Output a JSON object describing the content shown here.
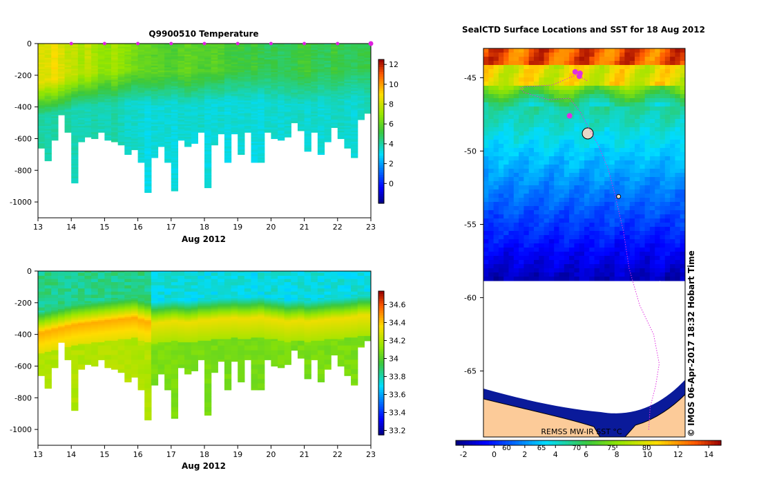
{
  "chart_data": [
    {
      "id": "temperature",
      "type": "heatmap",
      "title": "Q9900510  Temperature",
      "xlabel": "Aug 2012",
      "x_ticks": [
        "13",
        "14",
        "15",
        "16",
        "17",
        "18",
        "19",
        "20",
        "21",
        "22",
        "23"
      ],
      "x_tick_values": [
        13,
        14,
        15,
        16,
        17,
        18,
        19,
        20,
        21,
        22,
        23
      ],
      "xlim": [
        13,
        23
      ],
      "y_ticks": [
        "0",
        "-200",
        "-400",
        "-600",
        "-800",
        "-1000"
      ],
      "y_tick_values": [
        0,
        -200,
        -400,
        -600,
        -800,
        -1000
      ],
      "ylim": [
        -1100,
        0
      ],
      "colorbar_ticks": [
        "12",
        "10",
        "8",
        "6",
        "4",
        "2",
        "0"
      ],
      "colorbar_tick_values": [
        12,
        10,
        8,
        6,
        4,
        2,
        0
      ],
      "colorbar_range": [
        -2,
        12.5
      ],
      "profile_days": [
        13,
        13.2,
        13.4,
        13.6,
        13.8,
        14,
        14.2,
        14.4,
        14.6,
        14.8,
        15,
        15.2,
        15.4,
        15.6,
        15.8,
        16,
        16.2,
        16.4,
        16.6,
        16.8,
        17,
        17.2,
        17.4,
        17.6,
        17.8,
        18,
        18.2,
        18.4,
        18.6,
        18.8,
        19,
        19.2,
        19.4,
        19.6,
        19.8,
        20,
        20.2,
        20.4,
        20.6,
        20.8,
        21,
        21.2,
        21.4,
        21.6,
        21.8,
        22,
        22.2,
        22.4,
        22.6,
        22.8
      ],
      "max_depths": [
        -660,
        -740,
        -610,
        -450,
        -560,
        -880,
        -620,
        -590,
        -600,
        -560,
        -610,
        -620,
        -640,
        -700,
        -670,
        -750,
        -940,
        -720,
        -650,
        -750,
        -930,
        -610,
        -650,
        -630,
        -560,
        -910,
        -640,
        -570,
        -750,
        -570,
        -700,
        -560,
        -750,
        -750,
        -560,
        -600,
        -610,
        -590,
        -500,
        -550,
        -680,
        -560,
        -700,
        -620,
        -530,
        -600,
        -660,
        -720,
        -480,
        -440
      ],
      "mixed_layer_depths": [
        -240,
        -230,
        -220,
        -210,
        -200,
        -190,
        -185,
        -180,
        -175,
        -170,
        -165,
        -160,
        -155,
        -150,
        -145,
        -160,
        -170,
        -180,
        -175,
        -170,
        -165,
        -170,
        -175,
        -170,
        -160,
        -160,
        -155,
        -150,
        -150,
        -145,
        -150,
        -150,
        -145,
        -140,
        -150,
        -155,
        -160,
        -170,
        -165,
        -160,
        -170,
        -165,
        -160,
        -155,
        -150,
        -150,
        -145,
        -140,
        -130,
        -130
      ],
      "surface_values": [
        8.5,
        8.5,
        9,
        8.5,
        8,
        8,
        7.5,
        8,
        7.5,
        7,
        7,
        7.5,
        7,
        6.8,
        6.5,
        6.2,
        6.2,
        6,
        6,
        5.8,
        5.8,
        6,
        6.2,
        6,
        5.8,
        5.8,
        6,
        5.8,
        5.5,
        5.5,
        5.5,
        5.2,
        5.5,
        5.2,
        5,
        5.2,
        5,
        5,
        5.2,
        5.5,
        5.5,
        5.2,
        5,
        5,
        5.5,
        5.2,
        5,
        5,
        5.2,
        5.2
      ],
      "deep_values": [
        4,
        4,
        4,
        4,
        4,
        3.8,
        3.8,
        3.8,
        4,
        3.8,
        3.8,
        4,
        3.8,
        3.6,
        3.6,
        3.5,
        3.2,
        3.4,
        3.4,
        3.4,
        3.3,
        3.5,
        3.5,
        3.4,
        3.6,
        3.3,
        3.4,
        3.5,
        3.3,
        3.5,
        3.4,
        3.5,
        3.3,
        3.3,
        3.5,
        3.5,
        3.4,
        3.5,
        3.6,
        3.6,
        3.4,
        3.6,
        3.4,
        3.5,
        3.6,
        3.6,
        3.5,
        3.4,
        3.6,
        3.8
      ],
      "profile_markers": [
        14,
        15,
        16,
        17,
        18,
        19,
        20,
        21,
        22,
        23
      ],
      "colors": {
        "axis": "#000000",
        "marker": "#e020e0"
      }
    },
    {
      "id": "salinity",
      "type": "heatmap",
      "title": "",
      "xlabel": "Aug 2012",
      "x_ticks": [
        "13",
        "14",
        "15",
        "16",
        "17",
        "18",
        "19",
        "20",
        "21",
        "22",
        "23"
      ],
      "x_tick_values": [
        13,
        14,
        15,
        16,
        17,
        18,
        19,
        20,
        21,
        22,
        23
      ],
      "xlim": [
        13,
        23
      ],
      "y_ticks": [
        "0",
        "-200",
        "-400",
        "-600",
        "-800",
        "-1000"
      ],
      "y_tick_values": [
        0,
        -200,
        -400,
        -600,
        -800,
        -1000
      ],
      "ylim": [
        -1100,
        0
      ],
      "colorbar_ticks": [
        "34.6",
        "34.4",
        "34.2",
        "34",
        "33.8",
        "33.6",
        "33.4",
        "33.2"
      ],
      "colorbar_tick_values": [
        34.6,
        34.4,
        34.2,
        34,
        33.8,
        33.6,
        33.4,
        33.2
      ],
      "colorbar_range": [
        33.15,
        34.75
      ],
      "surface_value": 33.85,
      "halocline_value": 34.45,
      "deep_value": 34.2
    },
    {
      "id": "sst_map",
      "type": "heatmap",
      "title": "SealCTD  Surface Locations and SST for 18 Aug 2012",
      "y_ticks": [
        "-45",
        "-50",
        "-55",
        "-60",
        "-65"
      ],
      "y_tick_values": [
        -45,
        -50,
        -55,
        -60,
        -65
      ],
      "ylim": [
        -69.5,
        -43
      ],
      "x_ticks": [
        "60",
        "65",
        "70",
        "75",
        "80"
      ],
      "x_tick_values": [
        60,
        65,
        70,
        75,
        80
      ],
      "xlim": [
        56.7,
        85.5
      ],
      "colorbar_ticks": [
        "-2",
        "0",
        "2",
        "4",
        "6",
        "8",
        "10",
        "12",
        "14"
      ],
      "colorbar_tick_values": [
        -2,
        0,
        2,
        4,
        6,
        8,
        10,
        12,
        14
      ],
      "colorbar_range": [
        -2.5,
        14.8
      ],
      "product_label": "REMSS MW-IR SST °C",
      "side_label": "© IMOS 06-Apr-2017 18:32 Hobart Time",
      "seal_track": [
        [
          71.5,
          -45.2
        ],
        [
          70,
          -44.8
        ],
        [
          66.5,
          -45.5
        ],
        [
          63,
          -45.6
        ],
        [
          62,
          -45.7
        ],
        [
          62.5,
          -46
        ],
        [
          66,
          -46.5
        ],
        [
          69,
          -46.4
        ],
        [
          70.5,
          -47.3
        ],
        [
          71.5,
          -48.2
        ],
        [
          73,
          -49.5
        ],
        [
          74.5,
          -51.2
        ],
        [
          75.5,
          -53
        ],
        [
          76.7,
          -55.5
        ],
        [
          77.5,
          -58
        ],
        [
          79,
          -60.5
        ],
        [
          81,
          -62.5
        ],
        [
          81.8,
          -64.5
        ],
        [
          81.3,
          -66
        ],
        [
          80.5,
          -67.5
        ],
        [
          80.3,
          -69
        ]
      ],
      "seal_positions": [
        [
          69.8,
          -44.6
        ],
        [
          70.5,
          -44.7
        ],
        [
          70.4,
          -44.9
        ],
        [
          69,
          -47.6
        ]
      ],
      "islands": [
        [
          71.6,
          -48.8
        ],
        [
          76,
          -53.1
        ]
      ],
      "colors": {
        "land": "#fccb99",
        "track": "#e030e0"
      }
    }
  ]
}
